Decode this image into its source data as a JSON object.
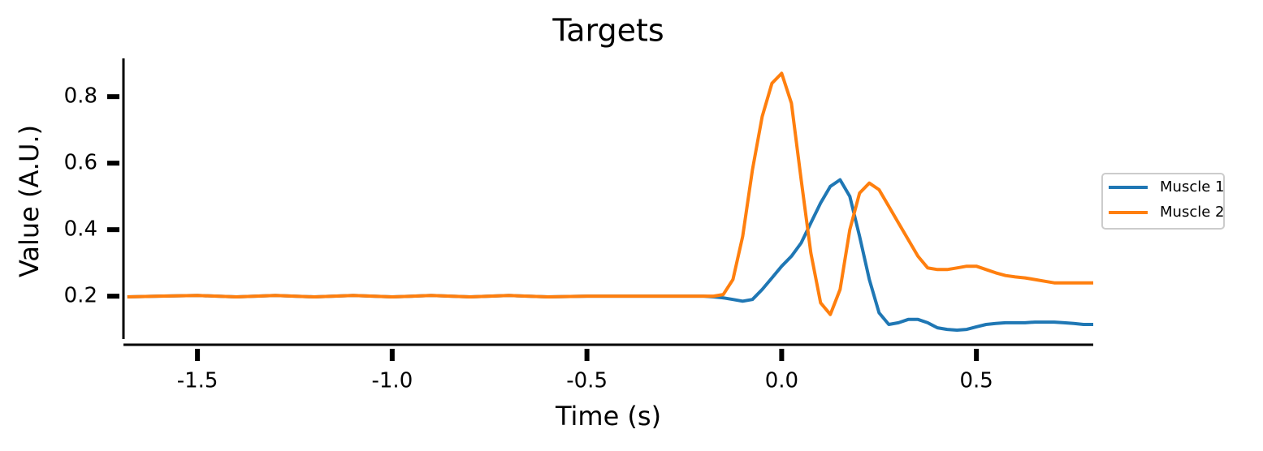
{
  "chart_data": {
    "type": "line",
    "title": "Targets",
    "xlabel": "Time (s)",
    "ylabel": "Value (A.U.)",
    "x": [
      -1.68,
      -1.6,
      -1.5,
      -1.4,
      -1.3,
      -1.2,
      -1.1,
      -1.0,
      -0.9,
      -0.8,
      -0.7,
      -0.6,
      -0.5,
      -0.4,
      -0.3,
      -0.25,
      -0.2,
      -0.175,
      -0.15,
      -0.125,
      -0.1,
      -0.075,
      -0.05,
      -0.025,
      0,
      0.025,
      0.05,
      0.075,
      0.1,
      0.125,
      0.15,
      0.175,
      0.2,
      0.225,
      0.25,
      0.275,
      0.3,
      0.325,
      0.35,
      0.375,
      0.4,
      0.425,
      0.45,
      0.475,
      0.5,
      0.525,
      0.55,
      0.575,
      0.6,
      0.625,
      0.65,
      0.675,
      0.7,
      0.725,
      0.75,
      0.775,
      0.8
    ],
    "series": [
      {
        "name": "Muscle 1",
        "color": "#1f77b4",
        "values": [
          0.198,
          0.2,
          0.202,
          0.198,
          0.202,
          0.198,
          0.202,
          0.198,
          0.202,
          0.198,
          0.202,
          0.198,
          0.2,
          0.2,
          0.2,
          0.2,
          0.2,
          0.198,
          0.195,
          0.19,
          0.185,
          0.19,
          0.22,
          0.255,
          0.29,
          0.32,
          0.36,
          0.42,
          0.48,
          0.53,
          0.55,
          0.5,
          0.38,
          0.25,
          0.15,
          0.115,
          0.12,
          0.13,
          0.13,
          0.12,
          0.105,
          0.1,
          0.098,
          0.1,
          0.108,
          0.115,
          0.118,
          0.12,
          0.12,
          0.12,
          0.122,
          0.122,
          0.122,
          0.12,
          0.118,
          0.115,
          0.115
        ]
      },
      {
        "name": "Muscle 2",
        "color": "#ff7f0e",
        "values": [
          0.198,
          0.2,
          0.202,
          0.198,
          0.202,
          0.198,
          0.202,
          0.198,
          0.202,
          0.198,
          0.202,
          0.198,
          0.2,
          0.2,
          0.2,
          0.2,
          0.2,
          0.2,
          0.205,
          0.25,
          0.38,
          0.58,
          0.74,
          0.84,
          0.87,
          0.78,
          0.55,
          0.33,
          0.18,
          0.145,
          0.22,
          0.4,
          0.51,
          0.54,
          0.52,
          0.47,
          0.42,
          0.37,
          0.32,
          0.285,
          0.28,
          0.28,
          0.285,
          0.29,
          0.29,
          0.28,
          0.27,
          0.262,
          0.258,
          0.255,
          0.25,
          0.245,
          0.24,
          0.24,
          0.24,
          0.24,
          0.24
        ]
      }
    ],
    "xlim": [
      -1.69,
      0.8
    ],
    "ylim": [
      0.054,
      0.915
    ],
    "xticks": [
      -1.5,
      {
        "value": -1,
        "label": "-1.0"
      },
      -0.5,
      {
        "value": 0,
        "label": "0.0"
      },
      0.5
    ],
    "yticks": [
      0.2,
      0.4,
      0.6,
      0.8
    ],
    "legend": "right"
  }
}
